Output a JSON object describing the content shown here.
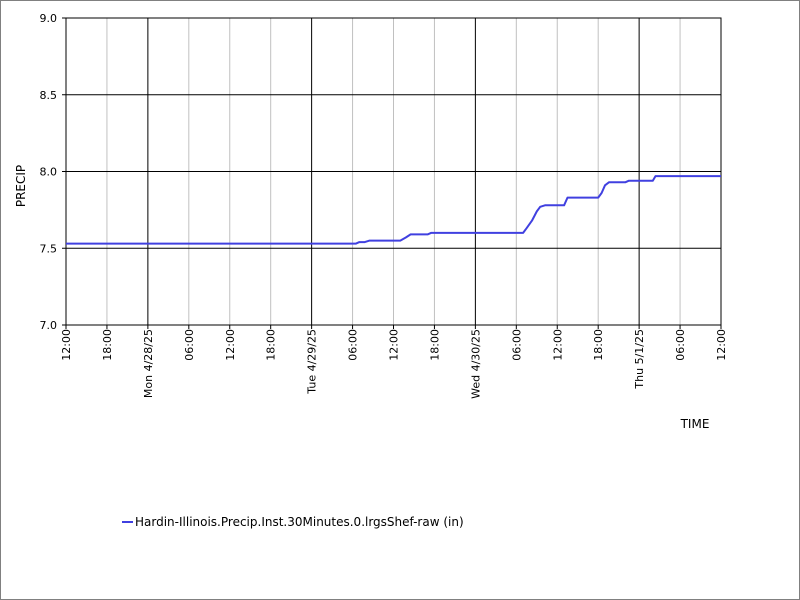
{
  "chart_data": {
    "type": "line",
    "xlabel": "TIME",
    "ylabel": "PRECIP",
    "ylim": [
      7.0,
      9.0
    ],
    "y_ticks": [
      "7.0",
      "7.5",
      "8.0",
      "8.5",
      "9.0"
    ],
    "x_range_hours": [
      0,
      96
    ],
    "x_ticks": [
      {
        "h": 0,
        "label": "12:00",
        "major": false
      },
      {
        "h": 6,
        "label": "18:00",
        "major": false
      },
      {
        "h": 12,
        "label": "Mon 4/28/25",
        "major": true
      },
      {
        "h": 18,
        "label": "06:00",
        "major": false
      },
      {
        "h": 24,
        "label": "12:00",
        "major": false
      },
      {
        "h": 30,
        "label": "18:00",
        "major": false
      },
      {
        "h": 36,
        "label": "Tue 4/29/25",
        "major": true
      },
      {
        "h": 42,
        "label": "06:00",
        "major": false
      },
      {
        "h": 48,
        "label": "12:00",
        "major": false
      },
      {
        "h": 54,
        "label": "18:00",
        "major": false
      },
      {
        "h": 60,
        "label": "Wed 4/30/25",
        "major": true
      },
      {
        "h": 66,
        "label": "06:00",
        "major": false
      },
      {
        "h": 72,
        "label": "12:00",
        "major": false
      },
      {
        "h": 78,
        "label": "18:00",
        "major": false
      },
      {
        "h": 84,
        "label": "Thu 5/1/25",
        "major": true
      },
      {
        "h": 90,
        "label": "06:00",
        "major": false
      },
      {
        "h": 96,
        "label": "12:00",
        "major": false
      }
    ],
    "series": [
      {
        "name": "Hardin-Illinois.Precip.Inst.30Minutes.0.lrgsShef-raw (in)",
        "color": "#4040e0",
        "points": [
          [
            0,
            7.53
          ],
          [
            42.5,
            7.53
          ],
          [
            43.0,
            7.54
          ],
          [
            43.8,
            7.54
          ],
          [
            44.5,
            7.55
          ],
          [
            49.0,
            7.55
          ],
          [
            49.8,
            7.57
          ],
          [
            50.5,
            7.59
          ],
          [
            53.0,
            7.59
          ],
          [
            53.5,
            7.6
          ],
          [
            67.0,
            7.6
          ],
          [
            67.5,
            7.63
          ],
          [
            68.3,
            7.68
          ],
          [
            69.0,
            7.74
          ],
          [
            69.5,
            7.77
          ],
          [
            70.2,
            7.78
          ],
          [
            73.0,
            7.78
          ],
          [
            73.5,
            7.83
          ],
          [
            78.0,
            7.83
          ],
          [
            78.5,
            7.86
          ],
          [
            79.0,
            7.91
          ],
          [
            79.6,
            7.93
          ],
          [
            82.0,
            7.93
          ],
          [
            82.5,
            7.94
          ],
          [
            86.0,
            7.94
          ],
          [
            86.4,
            7.97
          ],
          [
            96.0,
            7.97
          ]
        ]
      }
    ]
  }
}
